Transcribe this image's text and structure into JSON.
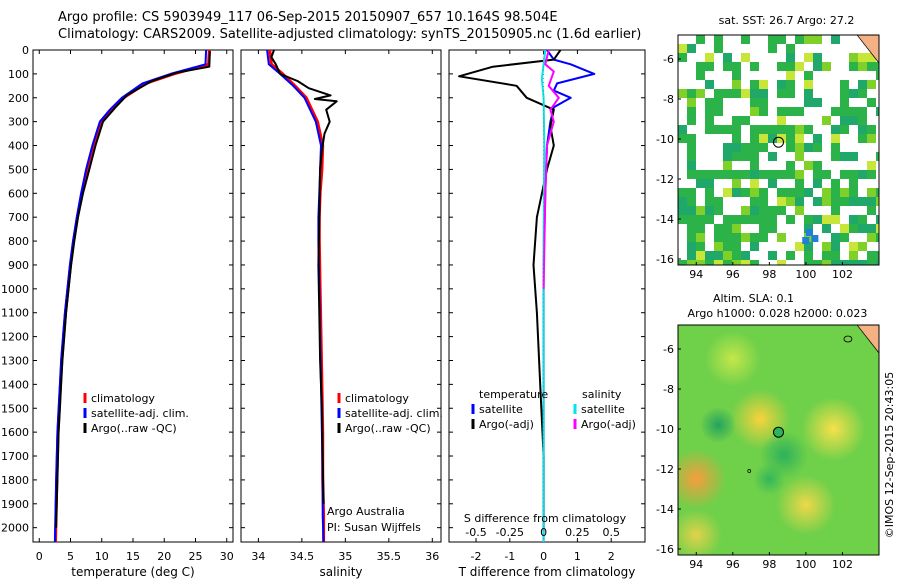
{
  "header": {
    "line1": "Argo profile: CS 5903949_117 06-Sep-2015 20150907_657 10.164S 98.504E",
    "line2": "Climatology: CARS2009. Satellite-adjusted climatology: synTS_20150905.nc (1.6d earlier)"
  },
  "colors": {
    "climatology": "#ff0000",
    "satellite": "#0000ff",
    "argo": "#000000",
    "sat_salinity": "#00e5ee",
    "argo_salinity_adj": "#ff00ff"
  },
  "chart_data": [
    {
      "id": "temperature",
      "type": "line",
      "xlabel": "temperature (deg C)",
      "xlim": [
        -1,
        31
      ],
      "xticks": [
        0,
        5,
        10,
        15,
        20,
        25,
        30
      ],
      "ylim": [
        2060,
        0
      ],
      "yticks": [
        0,
        100,
        200,
        300,
        400,
        500,
        600,
        700,
        800,
        900,
        1000,
        1100,
        1200,
        1300,
        1400,
        1500,
        1600,
        1700,
        1800,
        1900,
        2000
      ],
      "legend": [
        "climatology",
        "satellite-adj. clim.",
        "Argo(..raw -QC)"
      ],
      "series": [
        {
          "name": "climatology",
          "color": "red",
          "x": [
            27.2,
            27.1,
            21.5,
            17,
            13.5,
            11.5,
            9.8,
            8.6,
            7.6,
            6.8,
            6.1,
            5.5,
            5.0,
            4.6,
            4.2,
            3.9,
            3.6,
            3.4,
            3.2,
            3.0,
            2.8,
            2.6
          ],
          "y": [
            0,
            60,
            100,
            140,
            200,
            250,
            300,
            400,
            500,
            600,
            700,
            800,
            900,
            1000,
            1100,
            1200,
            1300,
            1400,
            1500,
            1600,
            1800,
            2060
          ]
        },
        {
          "name": "satellite-adj. clim.",
          "color": "blue",
          "x": [
            26.7,
            26.6,
            21,
            16.5,
            13.2,
            11.3,
            9.7,
            8.5,
            7.5,
            6.7,
            6.0,
            5.4,
            4.9,
            4.5,
            4.1,
            3.8,
            3.5,
            3.3,
            3.1,
            2.9,
            2.7,
            2.5
          ],
          "y": [
            0,
            60,
            100,
            140,
            200,
            250,
            300,
            400,
            500,
            600,
            700,
            800,
            900,
            1000,
            1100,
            1200,
            1300,
            1400,
            1500,
            1600,
            1800,
            2060
          ]
        },
        {
          "name": "Argo(..raw -QC)",
          "color": "black",
          "x": [
            27.3,
            27.2,
            22,
            18,
            14,
            12.2,
            10.2,
            9.0,
            8.0,
            7.0,
            6.2,
            5.6,
            5.1,
            4.7,
            4.3,
            4.0,
            3.7,
            3.5,
            3.3,
            3.1,
            2.9,
            2.7
          ],
          "y": [
            5,
            70,
            95,
            130,
            190,
            240,
            300,
            400,
            500,
            600,
            700,
            800,
            900,
            1000,
            1100,
            1200,
            1300,
            1400,
            1500,
            1600,
            1800,
            2000
          ]
        }
      ]
    },
    {
      "id": "salinity",
      "type": "line",
      "xlabel": "salinity",
      "xlim": [
        33.8,
        36.1
      ],
      "xticks": [
        34,
        34.5,
        35,
        35.5,
        36
      ],
      "ylim": [
        2060,
        0
      ],
      "legend": [
        "climatology",
        "satellite-adj. clim.",
        "Argo(..raw -QC)"
      ],
      "annotation": [
        "Argo Australia",
        "PI: Susan Wijffels"
      ],
      "series": [
        {
          "name": "climatology",
          "color": "red",
          "x": [
            34.13,
            34.15,
            34.28,
            34.42,
            34.55,
            34.68,
            34.74,
            34.73,
            34.71,
            34.7,
            34.7,
            34.71,
            34.72,
            34.73,
            34.74,
            34.74,
            34.75,
            34.75
          ],
          "y": [
            0,
            60,
            100,
            150,
            200,
            300,
            400,
            500,
            600,
            700,
            800,
            1000,
            1200,
            1400,
            1600,
            1800,
            1950,
            2060
          ]
        },
        {
          "name": "satellite-adj. clim.",
          "color": "blue",
          "x": [
            34.1,
            34.12,
            34.25,
            34.4,
            34.53,
            34.66,
            34.72,
            34.71,
            34.7,
            34.69,
            34.69,
            34.7,
            34.71,
            34.72,
            34.73,
            34.74,
            34.74,
            34.75
          ],
          "y": [
            0,
            60,
            100,
            150,
            200,
            300,
            400,
            500,
            600,
            700,
            800,
            1000,
            1200,
            1400,
            1600,
            1800,
            1950,
            2060
          ]
        },
        {
          "name": "Argo(..raw -QC)",
          "color": "black",
          "x": [
            34.18,
            34.15,
            34.2,
            34.25,
            34.45,
            34.58,
            34.83,
            34.65,
            34.9,
            34.78,
            34.82,
            34.76,
            34.73,
            34.71,
            34.7,
            34.69,
            34.7,
            34.71,
            34.73,
            34.74,
            34.75
          ],
          "y": [
            0,
            30,
            60,
            100,
            130,
            160,
            190,
            205,
            215,
            250,
            300,
            350,
            420,
            500,
            700,
            900,
            1100,
            1300,
            1500,
            1700,
            1900
          ]
        }
      ]
    },
    {
      "id": "difference",
      "type": "line",
      "xlabel": "T difference from climatology",
      "xlabel_top": "S difference from climatology",
      "xlim": [
        -2.8,
        3.0
      ],
      "xticks": [
        -2,
        -1,
        0,
        1,
        2
      ],
      "xticks_top": [
        "-0.5",
        "-0.25",
        "0",
        "0.25",
        "0.5"
      ],
      "ylim": [
        2060,
        0
      ],
      "legend_left_title": "temperature",
      "legend_right_title": "salinity",
      "legend": [
        "satellite",
        "Argo(-adj)",
        "satellite",
        "Argo(-adj)"
      ],
      "series": [
        {
          "name": "temperature satellite",
          "color": "blue",
          "x": [
            0.1,
            0.3,
            0.8,
            1.5,
            0.4,
            0.3,
            0.8,
            0.3,
            0.2,
            0.1,
            0.05,
            0.0,
            0.0,
            0.0,
            0.0
          ],
          "y": [
            0,
            40,
            60,
            100,
            140,
            170,
            200,
            240,
            300,
            400,
            600,
            900,
            1200,
            1600,
            2060
          ]
        },
        {
          "name": "temperature Argo(-adj)",
          "color": "black",
          "x": [
            0.5,
            0.3,
            -1.5,
            -2.5,
            -0.8,
            -0.5,
            0.3,
            0.2,
            0.3,
            0.1,
            -0.2,
            -0.3,
            -0.2,
            -0.1,
            0.0,
            0.0
          ],
          "y": [
            0,
            40,
            70,
            110,
            150,
            200,
            250,
            320,
            400,
            500,
            700,
            900,
            1100,
            1400,
            1700,
            2000
          ]
        },
        {
          "name": "salinity satellite",
          "color": "cyan",
          "x": [
            0.05,
            0.0,
            -0.05,
            0.0,
            0.02,
            0.0,
            0.0,
            0.0,
            0.0
          ],
          "y": [
            0,
            60,
            120,
            200,
            400,
            800,
            1200,
            1600,
            2060
          ]
        },
        {
          "name": "salinity Argo(-adj)",
          "color": "magenta",
          "x": [
            0.15,
            0.05,
            0.3,
            0.15,
            0.45,
            0.2,
            0.3,
            0.1,
            0.05,
            0.0
          ],
          "y": [
            0,
            60,
            90,
            150,
            200,
            250,
            300,
            400,
            600,
            1000
          ]
        }
      ]
    }
  ],
  "maps": [
    {
      "id": "sst-map",
      "title": "sat. SST: 26.7 Argo: 27.2",
      "xticks": [
        94,
        96,
        98,
        100,
        102
      ],
      "yticks": [
        -6,
        -8,
        -10,
        -12,
        -14,
        -16
      ],
      "lon_range": [
        93,
        104
      ],
      "lat_range": [
        -16.3,
        -4.8
      ],
      "float_position": [
        98.5,
        -10.16
      ]
    },
    {
      "id": "sla-map",
      "title_line1": "Altim. SLA: 0.1",
      "title_line2": "Argo h1000: 0.028 h2000: 0.023",
      "xticks": [
        94,
        96,
        98,
        100,
        102
      ],
      "yticks": [
        -6,
        -8,
        -10,
        -12,
        -14,
        -16
      ],
      "lon_range": [
        93,
        104
      ],
      "lat_range": [
        -16.3,
        -4.8
      ],
      "float_position": [
        98.5,
        -10.16
      ]
    }
  ],
  "footer": {
    "stamp": "©IMOS 12-Sep-2015 20:43:05"
  }
}
